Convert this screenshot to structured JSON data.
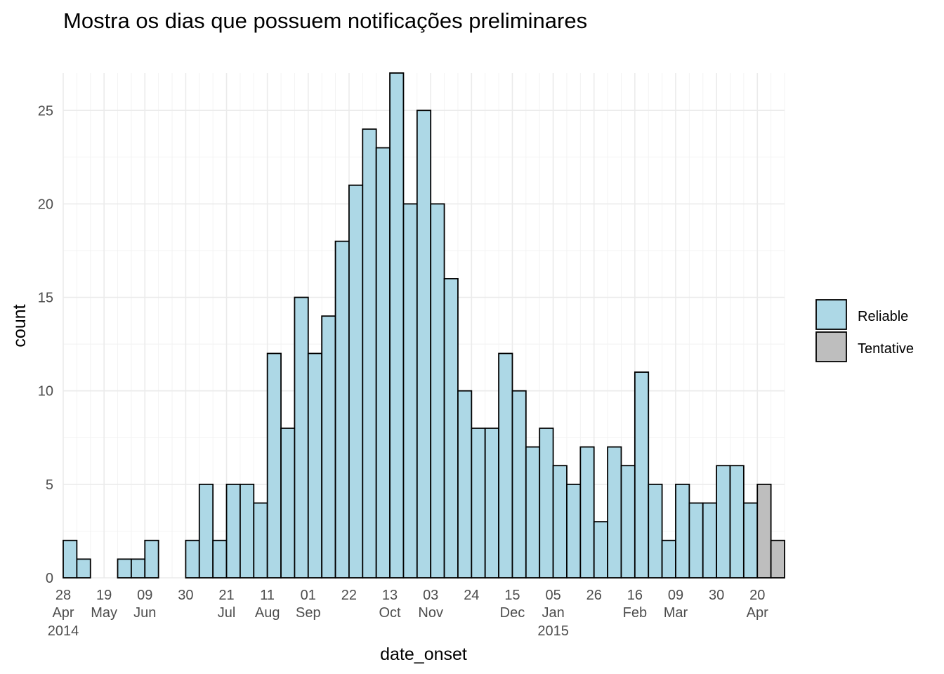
{
  "chart_data": {
    "type": "bar",
    "title": "Mostra os dias que possuem notificações preliminares",
    "xlabel": "date_onset",
    "ylabel": "count",
    "ylim": [
      0,
      27
    ],
    "y_ticks": [
      0,
      5,
      10,
      15,
      20,
      25
    ],
    "bin_width_days": 7,
    "x_start": "2014-04-28",
    "x_ticks": [
      {
        "date": "2014-04-28",
        "day": "28",
        "month": "Apr",
        "year": "2014"
      },
      {
        "date": "2014-05-19",
        "day": "19",
        "month": "May",
        "year": ""
      },
      {
        "date": "2014-06-09",
        "day": "09",
        "month": "Jun",
        "year": ""
      },
      {
        "date": "2014-06-30",
        "day": "30",
        "month": "",
        "year": ""
      },
      {
        "date": "2014-07-21",
        "day": "21",
        "month": "Jul",
        "year": ""
      },
      {
        "date": "2014-08-11",
        "day": "11",
        "month": "Aug",
        "year": ""
      },
      {
        "date": "2014-09-01",
        "day": "01",
        "month": "Sep",
        "year": ""
      },
      {
        "date": "2014-09-22",
        "day": "22",
        "month": "",
        "year": ""
      },
      {
        "date": "2014-10-13",
        "day": "13",
        "month": "Oct",
        "year": ""
      },
      {
        "date": "2014-11-03",
        "day": "03",
        "month": "Nov",
        "year": ""
      },
      {
        "date": "2014-11-24",
        "day": "24",
        "month": "",
        "year": ""
      },
      {
        "date": "2014-12-15",
        "day": "15",
        "month": "Dec",
        "year": ""
      },
      {
        "date": "2015-01-05",
        "day": "05",
        "month": "Jan",
        "year": "2015"
      },
      {
        "date": "2015-01-26",
        "day": "26",
        "month": "",
        "year": ""
      },
      {
        "date": "2015-02-16",
        "day": "16",
        "month": "Feb",
        "year": ""
      },
      {
        "date": "2015-03-09",
        "day": "09",
        "month": "Mar",
        "year": ""
      },
      {
        "date": "2015-03-30",
        "day": "30",
        "month": "",
        "year": ""
      },
      {
        "date": "2015-04-20",
        "day": "20",
        "month": "Apr",
        "year": ""
      }
    ],
    "series": [
      {
        "name": "Reliable",
        "color": "#add8e6",
        "values": [
          2,
          1,
          0,
          0,
          1,
          1,
          2,
          0,
          0,
          2,
          5,
          2,
          5,
          5,
          4,
          12,
          8,
          15,
          12,
          14,
          18,
          21,
          24,
          23,
          27,
          20,
          25,
          20,
          16,
          10,
          8,
          8,
          12,
          10,
          7,
          8,
          6,
          5,
          7,
          3,
          7,
          6,
          11,
          5,
          2,
          5,
          4,
          4,
          6,
          6,
          4,
          0,
          0
        ]
      },
      {
        "name": "Tentative",
        "color": "#bebebe",
        "values": [
          0,
          0,
          0,
          0,
          0,
          0,
          0,
          0,
          0,
          0,
          0,
          0,
          0,
          0,
          0,
          0,
          0,
          0,
          0,
          0,
          0,
          0,
          0,
          0,
          0,
          0,
          0,
          0,
          0,
          0,
          0,
          0,
          0,
          0,
          0,
          0,
          0,
          0,
          0,
          0,
          0,
          0,
          0,
          0,
          0,
          0,
          0,
          0,
          0,
          0,
          0,
          5,
          2
        ]
      }
    ],
    "legend_position": "right",
    "grid": true
  }
}
